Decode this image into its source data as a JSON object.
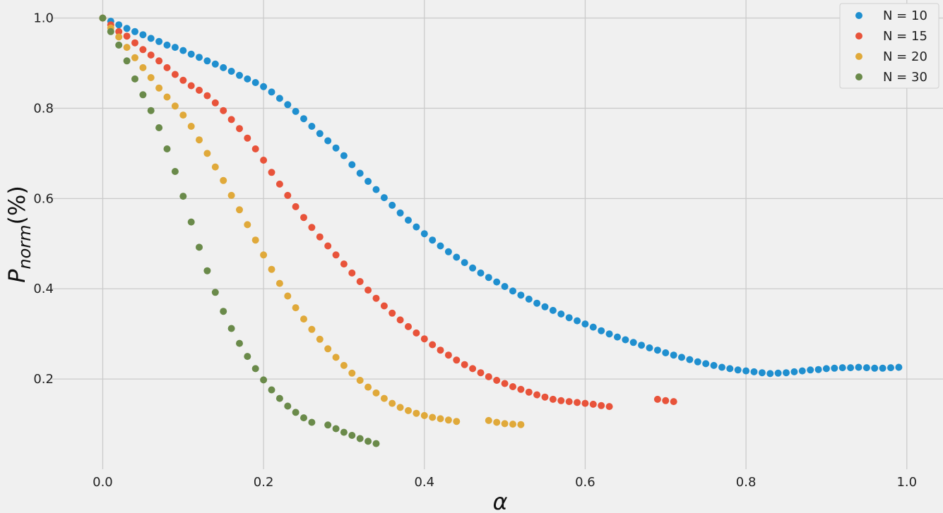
{
  "chart_data": {
    "type": "scatter",
    "title": "",
    "xlabel": "α",
    "ylabel_main": "P",
    "ylabel_sub": "norm",
    "ylabel_suffix": "(%)",
    "xlim": [
      -0.09,
      1.045
    ],
    "ylim": [
      0.0,
      1.04
    ],
    "xticks": [
      0.0,
      0.2,
      0.4,
      0.6,
      0.8,
      1.0
    ],
    "xtick_labels": [
      "0.0",
      "0.2",
      "0.4",
      "0.6",
      "0.8",
      "1.0"
    ],
    "yticks": [
      0.2,
      0.4,
      0.6,
      0.8,
      1.0
    ],
    "ytick_labels": [
      "0.2",
      "0.4",
      "0.6",
      "0.8",
      "1.0"
    ],
    "grid": true,
    "legend_position": "top-right",
    "series": [
      {
        "name": "N = 10",
        "color": "#1f8fcf",
        "points": [
          [
            0.0,
            1.0
          ],
          [
            0.01,
            0.993
          ],
          [
            0.02,
            0.985
          ],
          [
            0.03,
            0.977
          ],
          [
            0.04,
            0.97
          ],
          [
            0.05,
            0.963
          ],
          [
            0.06,
            0.955
          ],
          [
            0.07,
            0.948
          ],
          [
            0.08,
            0.94
          ],
          [
            0.09,
            0.935
          ],
          [
            0.1,
            0.928
          ],
          [
            0.11,
            0.92
          ],
          [
            0.12,
            0.913
          ],
          [
            0.13,
            0.905
          ],
          [
            0.14,
            0.898
          ],
          [
            0.15,
            0.89
          ],
          [
            0.16,
            0.882
          ],
          [
            0.17,
            0.873
          ],
          [
            0.18,
            0.865
          ],
          [
            0.19,
            0.857
          ],
          [
            0.2,
            0.848
          ],
          [
            0.21,
            0.836
          ],
          [
            0.22,
            0.822
          ],
          [
            0.23,
            0.808
          ],
          [
            0.24,
            0.793
          ],
          [
            0.25,
            0.777
          ],
          [
            0.26,
            0.76
          ],
          [
            0.27,
            0.744
          ],
          [
            0.28,
            0.728
          ],
          [
            0.29,
            0.712
          ],
          [
            0.3,
            0.695
          ],
          [
            0.31,
            0.675
          ],
          [
            0.32,
            0.656
          ],
          [
            0.33,
            0.638
          ],
          [
            0.34,
            0.62
          ],
          [
            0.35,
            0.602
          ],
          [
            0.36,
            0.585
          ],
          [
            0.37,
            0.568
          ],
          [
            0.38,
            0.552
          ],
          [
            0.39,
            0.537
          ],
          [
            0.4,
            0.522
          ],
          [
            0.41,
            0.508
          ],
          [
            0.42,
            0.495
          ],
          [
            0.43,
            0.482
          ],
          [
            0.44,
            0.47
          ],
          [
            0.45,
            0.458
          ],
          [
            0.46,
            0.446
          ],
          [
            0.47,
            0.435
          ],
          [
            0.48,
            0.425
          ],
          [
            0.49,
            0.415
          ],
          [
            0.5,
            0.405
          ],
          [
            0.51,
            0.395
          ],
          [
            0.52,
            0.386
          ],
          [
            0.53,
            0.377
          ],
          [
            0.54,
            0.368
          ],
          [
            0.55,
            0.36
          ],
          [
            0.56,
            0.352
          ],
          [
            0.57,
            0.344
          ],
          [
            0.58,
            0.336
          ],
          [
            0.59,
            0.329
          ],
          [
            0.6,
            0.322
          ],
          [
            0.61,
            0.315
          ],
          [
            0.62,
            0.307
          ],
          [
            0.63,
            0.3
          ],
          [
            0.64,
            0.293
          ],
          [
            0.65,
            0.287
          ],
          [
            0.66,
            0.281
          ],
          [
            0.67,
            0.275
          ],
          [
            0.68,
            0.269
          ],
          [
            0.69,
            0.264
          ],
          [
            0.7,
            0.258
          ],
          [
            0.71,
            0.253
          ],
          [
            0.72,
            0.248
          ],
          [
            0.73,
            0.243
          ],
          [
            0.74,
            0.238
          ],
          [
            0.75,
            0.234
          ],
          [
            0.76,
            0.23
          ],
          [
            0.77,
            0.226
          ],
          [
            0.78,
            0.223
          ],
          [
            0.79,
            0.22
          ],
          [
            0.8,
            0.218
          ],
          [
            0.81,
            0.216
          ],
          [
            0.82,
            0.214
          ],
          [
            0.83,
            0.212
          ],
          [
            0.84,
            0.213
          ],
          [
            0.85,
            0.214
          ],
          [
            0.86,
            0.216
          ],
          [
            0.87,
            0.218
          ],
          [
            0.88,
            0.22
          ],
          [
            0.89,
            0.221
          ],
          [
            0.9,
            0.223
          ],
          [
            0.91,
            0.224
          ],
          [
            0.92,
            0.225
          ],
          [
            0.93,
            0.225
          ],
          [
            0.94,
            0.226
          ],
          [
            0.95,
            0.225
          ],
          [
            0.96,
            0.224
          ],
          [
            0.97,
            0.224
          ],
          [
            0.98,
            0.225
          ],
          [
            0.99,
            0.226
          ]
        ]
      },
      {
        "name": "N = 15",
        "color": "#e8533a",
        "points": [
          [
            0.0,
            1.0
          ],
          [
            0.01,
            0.985
          ],
          [
            0.02,
            0.97
          ],
          [
            0.03,
            0.96
          ],
          [
            0.04,
            0.945
          ],
          [
            0.05,
            0.93
          ],
          [
            0.06,
            0.918
          ],
          [
            0.07,
            0.905
          ],
          [
            0.08,
            0.89
          ],
          [
            0.09,
            0.875
          ],
          [
            0.1,
            0.862
          ],
          [
            0.11,
            0.85
          ],
          [
            0.12,
            0.84
          ],
          [
            0.13,
            0.828
          ],
          [
            0.14,
            0.812
          ],
          [
            0.15,
            0.795
          ],
          [
            0.16,
            0.775
          ],
          [
            0.17,
            0.755
          ],
          [
            0.18,
            0.734
          ],
          [
            0.19,
            0.71
          ],
          [
            0.2,
            0.685
          ],
          [
            0.21,
            0.658
          ],
          [
            0.22,
            0.632
          ],
          [
            0.23,
            0.607
          ],
          [
            0.24,
            0.582
          ],
          [
            0.25,
            0.558
          ],
          [
            0.26,
            0.536
          ],
          [
            0.27,
            0.515
          ],
          [
            0.28,
            0.495
          ],
          [
            0.29,
            0.475
          ],
          [
            0.3,
            0.455
          ],
          [
            0.31,
            0.435
          ],
          [
            0.32,
            0.416
          ],
          [
            0.33,
            0.397
          ],
          [
            0.34,
            0.379
          ],
          [
            0.35,
            0.362
          ],
          [
            0.36,
            0.346
          ],
          [
            0.37,
            0.331
          ],
          [
            0.38,
            0.316
          ],
          [
            0.39,
            0.302
          ],
          [
            0.4,
            0.289
          ],
          [
            0.41,
            0.276
          ],
          [
            0.42,
            0.264
          ],
          [
            0.43,
            0.253
          ],
          [
            0.44,
            0.242
          ],
          [
            0.45,
            0.232
          ],
          [
            0.46,
            0.223
          ],
          [
            0.47,
            0.214
          ],
          [
            0.48,
            0.205
          ],
          [
            0.49,
            0.197
          ],
          [
            0.5,
            0.19
          ],
          [
            0.51,
            0.183
          ],
          [
            0.52,
            0.177
          ],
          [
            0.53,
            0.171
          ],
          [
            0.54,
            0.165
          ],
          [
            0.55,
            0.16
          ],
          [
            0.56,
            0.155
          ],
          [
            0.57,
            0.152
          ],
          [
            0.58,
            0.15
          ],
          [
            0.59,
            0.148
          ],
          [
            0.6,
            0.146
          ],
          [
            0.61,
            0.144
          ],
          [
            0.62,
            0.141
          ],
          [
            0.63,
            0.139
          ],
          [
            0.69,
            0.155
          ],
          [
            0.7,
            0.152
          ],
          [
            0.71,
            0.15
          ]
        ]
      },
      {
        "name": "N = 20",
        "color": "#e0a93a",
        "points": [
          [
            0.0,
            1.0
          ],
          [
            0.01,
            0.978
          ],
          [
            0.02,
            0.958
          ],
          [
            0.03,
            0.935
          ],
          [
            0.04,
            0.912
          ],
          [
            0.05,
            0.89
          ],
          [
            0.06,
            0.868
          ],
          [
            0.07,
            0.845
          ],
          [
            0.08,
            0.825
          ],
          [
            0.09,
            0.805
          ],
          [
            0.1,
            0.785
          ],
          [
            0.11,
            0.76
          ],
          [
            0.12,
            0.73
          ],
          [
            0.13,
            0.7
          ],
          [
            0.14,
            0.67
          ],
          [
            0.15,
            0.64
          ],
          [
            0.16,
            0.607
          ],
          [
            0.17,
            0.575
          ],
          [
            0.18,
            0.542
          ],
          [
            0.19,
            0.508
          ],
          [
            0.2,
            0.475
          ],
          [
            0.21,
            0.443
          ],
          [
            0.22,
            0.412
          ],
          [
            0.23,
            0.384
          ],
          [
            0.24,
            0.358
          ],
          [
            0.25,
            0.333
          ],
          [
            0.26,
            0.31
          ],
          [
            0.27,
            0.288
          ],
          [
            0.28,
            0.267
          ],
          [
            0.29,
            0.248
          ],
          [
            0.3,
            0.23
          ],
          [
            0.31,
            0.213
          ],
          [
            0.32,
            0.197
          ],
          [
            0.33,
            0.182
          ],
          [
            0.34,
            0.169
          ],
          [
            0.35,
            0.157
          ],
          [
            0.36,
            0.146
          ],
          [
            0.37,
            0.137
          ],
          [
            0.38,
            0.13
          ],
          [
            0.39,
            0.124
          ],
          [
            0.4,
            0.119
          ],
          [
            0.41,
            0.115
          ],
          [
            0.42,
            0.112
          ],
          [
            0.43,
            0.109
          ],
          [
            0.44,
            0.106
          ],
          [
            0.48,
            0.108
          ],
          [
            0.49,
            0.104
          ],
          [
            0.5,
            0.101
          ],
          [
            0.51,
            0.1
          ],
          [
            0.52,
            0.099
          ]
        ]
      },
      {
        "name": "N = 30",
        "color": "#6a8a4a",
        "points": [
          [
            0.0,
            1.0
          ],
          [
            0.01,
            0.97
          ],
          [
            0.02,
            0.94
          ],
          [
            0.03,
            0.905
          ],
          [
            0.04,
            0.865
          ],
          [
            0.05,
            0.83
          ],
          [
            0.06,
            0.795
          ],
          [
            0.07,
            0.757
          ],
          [
            0.08,
            0.71
          ],
          [
            0.09,
            0.66
          ],
          [
            0.1,
            0.605
          ],
          [
            0.11,
            0.548
          ],
          [
            0.12,
            0.492
          ],
          [
            0.13,
            0.44
          ],
          [
            0.14,
            0.392
          ],
          [
            0.15,
            0.35
          ],
          [
            0.16,
            0.312
          ],
          [
            0.17,
            0.279
          ],
          [
            0.18,
            0.25
          ],
          [
            0.19,
            0.223
          ],
          [
            0.2,
            0.198
          ],
          [
            0.21,
            0.176
          ],
          [
            0.22,
            0.157
          ],
          [
            0.23,
            0.14
          ],
          [
            0.24,
            0.126
          ],
          [
            0.25,
            0.114
          ],
          [
            0.26,
            0.104
          ],
          [
            0.28,
            0.098
          ],
          [
            0.29,
            0.09
          ],
          [
            0.3,
            0.082
          ],
          [
            0.31,
            0.075
          ],
          [
            0.32,
            0.068
          ],
          [
            0.33,
            0.062
          ],
          [
            0.34,
            0.057
          ]
        ]
      }
    ]
  }
}
